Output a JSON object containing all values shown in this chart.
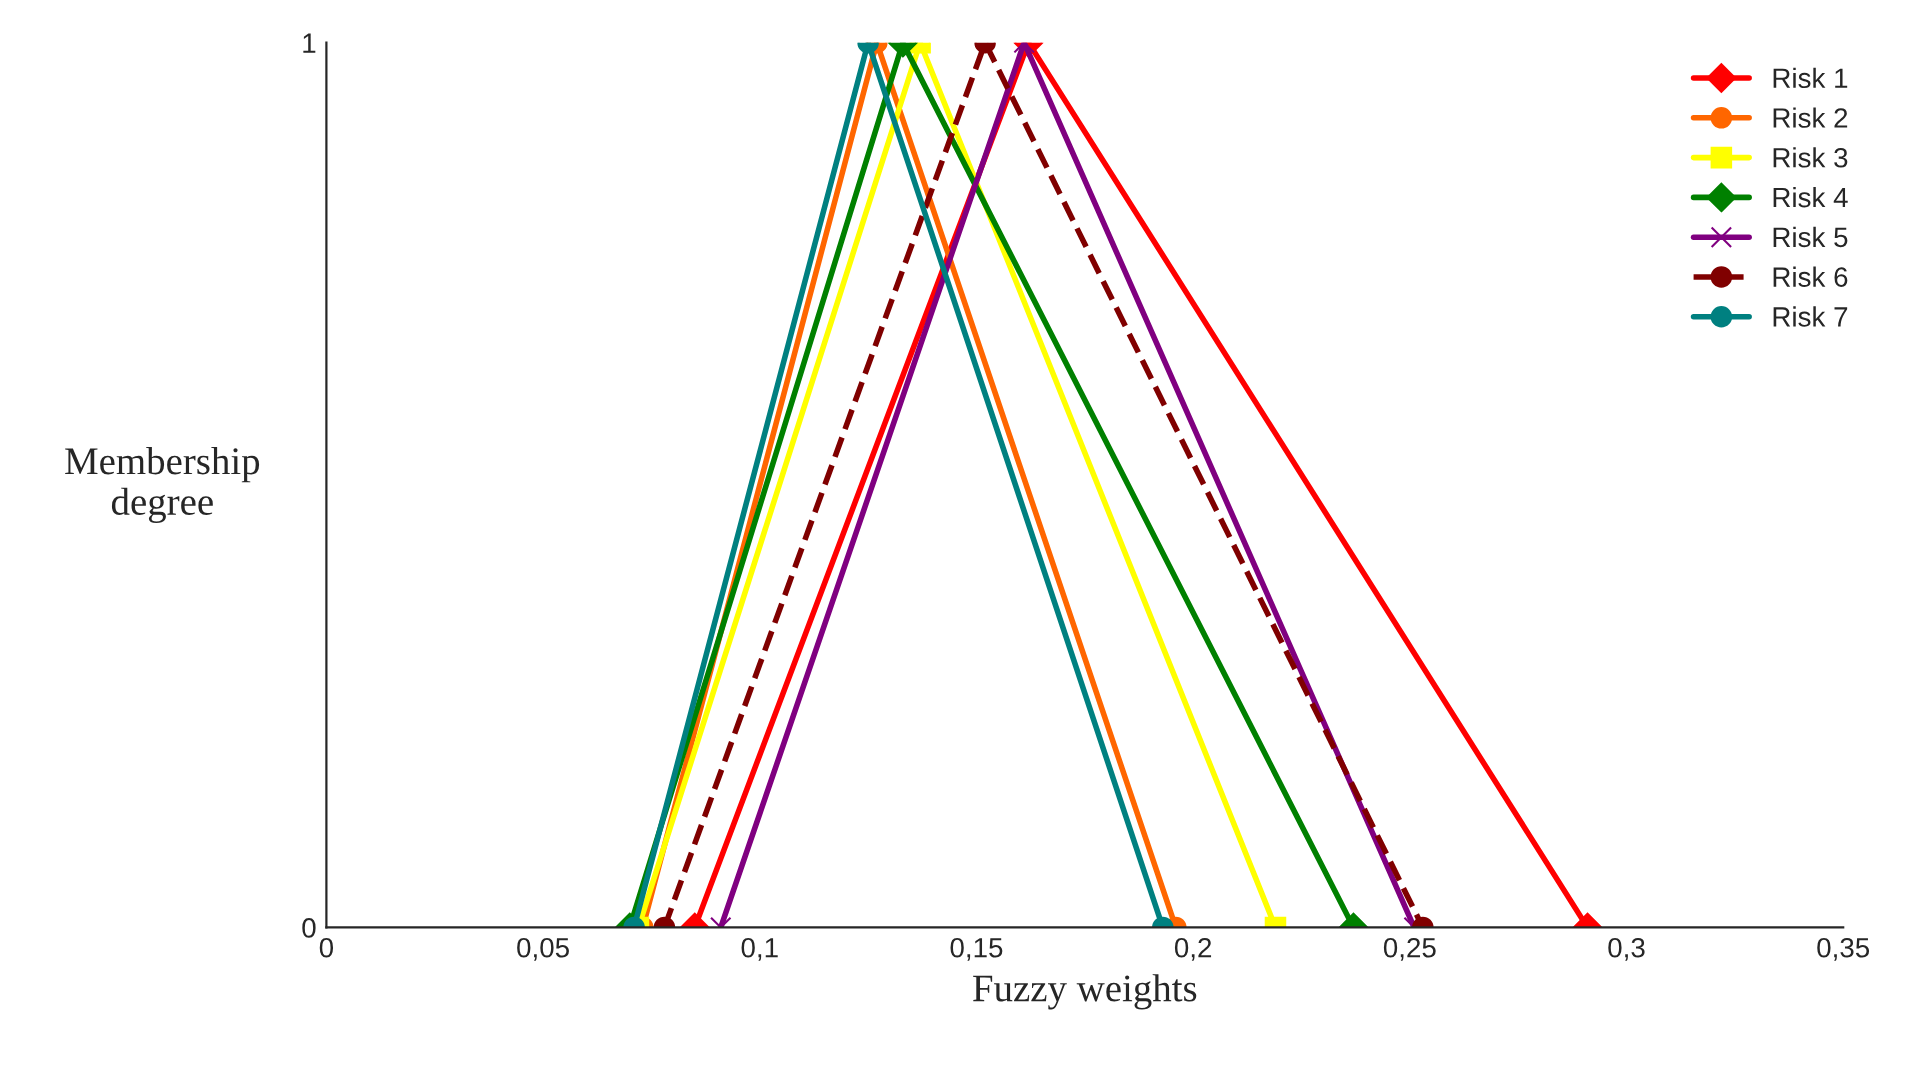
{
  "chart_data": {
    "type": "line",
    "xlabel": "Fuzzy weights",
    "ylabel": "Membership\ndegree",
    "xlim": [
      0,
      0.35
    ],
    "ylim": [
      0,
      1
    ],
    "xticks": [
      {
        "value": 0,
        "label": "0"
      },
      {
        "value": 0.05,
        "label": "0,05"
      },
      {
        "value": 0.1,
        "label": "0,1"
      },
      {
        "value": 0.15,
        "label": "0,15"
      },
      {
        "value": 0.2,
        "label": "0,2"
      },
      {
        "value": 0.25,
        "label": "0,25"
      },
      {
        "value": 0.3,
        "label": "0,3"
      },
      {
        "value": 0.35,
        "label": "0,35"
      }
    ],
    "yticks": [
      0,
      1
    ],
    "grid": false,
    "legend": "top right",
    "series": [
      {
        "name": "Risk 1",
        "color": "#ff0000",
        "x": [
          0.085,
          0.162,
          0.291
        ],
        "values": [
          0,
          1,
          0
        ],
        "marker": "diamond",
        "line_style": "solid"
      },
      {
        "name": "Risk 2",
        "color": "#ff6600",
        "x": [
          0.073,
          0.127,
          0.196
        ],
        "values": [
          0,
          1,
          0
        ],
        "marker": "circle",
        "line_style": "solid"
      },
      {
        "name": "Risk 3",
        "color": "#ffff00",
        "x": [
          0.072,
          0.137,
          0.219
        ],
        "values": [
          0,
          1,
          0
        ],
        "marker": "square",
        "line_style": "solid"
      },
      {
        "name": "Risk 4",
        "color": "#008000",
        "x": [
          0.07,
          0.133,
          0.237
        ],
        "values": [
          0,
          1,
          0
        ],
        "marker": "diamond",
        "line_style": "solid"
      },
      {
        "name": "Risk 5",
        "color": "#800080",
        "x": [
          0.091,
          0.161,
          0.251
        ],
        "values": [
          0,
          1,
          0
        ],
        "marker": "cross",
        "line_style": "solid"
      },
      {
        "name": "Risk 6",
        "color": "#800000",
        "x": [
          0.078,
          0.152,
          0.253
        ],
        "values": [
          0,
          1,
          0
        ],
        "marker": "circle",
        "line_style": "dashed"
      },
      {
        "name": "Risk 7",
        "color": "#008080",
        "x": [
          0.071,
          0.125,
          0.193
        ],
        "values": [
          0,
          1,
          0
        ],
        "marker": "circle",
        "line_style": "solid"
      }
    ]
  }
}
